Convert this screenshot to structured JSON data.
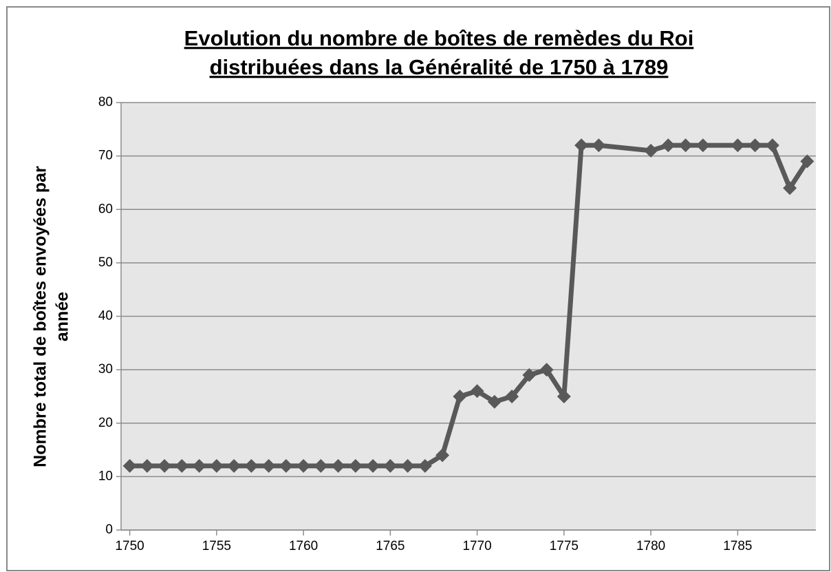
{
  "chart_data": {
    "type": "line",
    "title": [
      "Evolution du nombre de boîtes de remèdes du Roi",
      "distribuées dans la Généralité de 1750 à 1789"
    ],
    "y_label": [
      "Nombre total de boîtes envoyées par",
      "année"
    ],
    "x": [
      1750,
      1751,
      1752,
      1753,
      1754,
      1755,
      1756,
      1757,
      1758,
      1759,
      1760,
      1761,
      1762,
      1763,
      1764,
      1765,
      1766,
      1767,
      1768,
      1769,
      1770,
      1771,
      1772,
      1773,
      1774,
      1775,
      1776,
      1777,
      1780,
      1781,
      1782,
      1783,
      1785,
      1786,
      1787,
      1788,
      1789
    ],
    "series": [
      {
        "color": "#595959",
        "values": [
          12,
          12,
          12,
          12,
          12,
          12,
          12,
          12,
          12,
          12,
          12,
          12,
          12,
          12,
          12,
          12,
          12,
          12,
          14,
          25,
          26,
          24,
          25,
          29,
          30,
          25,
          72,
          72,
          71,
          72,
          72,
          72,
          72,
          72,
          72,
          64,
          69
        ]
      }
    ],
    "xlim": [
      1749.5,
      1789.5
    ],
    "xticks": [
      1750,
      1755,
      1760,
      1765,
      1770,
      1775,
      1780,
      1785
    ],
    "ylim": [
      0,
      80
    ],
    "yticks": [
      0,
      10,
      20,
      30,
      40,
      50,
      60,
      70,
      80
    ],
    "grid": true
  }
}
